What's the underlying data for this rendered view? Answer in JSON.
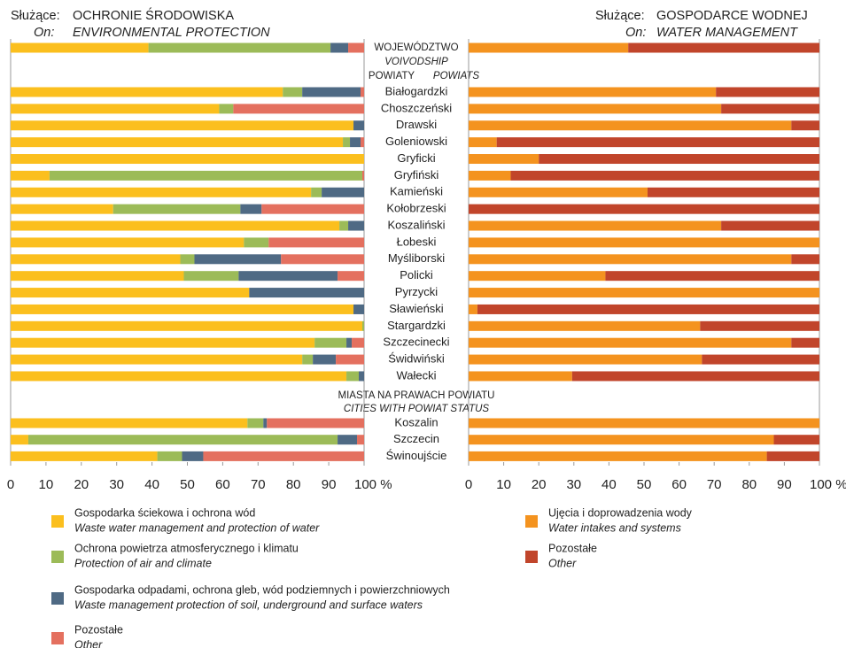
{
  "chart_data": {
    "type": "bar",
    "orientation": "horizontal",
    "stacked": true,
    "categories": [
      "WOJEWÓDZTWO",
      "Białogardzki",
      "Choszczeński",
      "Drawski",
      "Goleniowski",
      "Gryficki",
      "Gryfiński",
      "Kamieński",
      "Kołobrzeski",
      "Koszaliński",
      "Łobeski",
      "Myśliborski",
      "Policki",
      "Pyrzycki",
      "Sławieński",
      "Stargardzki",
      "Szczecinecki",
      "Świdwiński",
      "Wałecki",
      "Koszalin",
      "Szczecin",
      "Świnoujście"
    ],
    "annotations": [
      "VOIVODSHIP",
      "POWIATY",
      "POWIATS",
      "MIASTA NA PRAWACH POWIATU",
      "CITIES WITH POWIAT STATUS"
    ],
    "panels": [
      {
        "label_pl": "Służące:",
        "title": "OCHRONIE ŚRODOWISKA",
        "label_en": "On:",
        "subtitle": "ENVIRONMENTAL PROTECTION",
        "xlim": [
          0,
          100
        ],
        "xticks": [
          0,
          10,
          20,
          30,
          40,
          50,
          60,
          70,
          80,
          90,
          {
            "value": 100,
            "label": "100 %"
          }
        ],
        "series": [
          {
            "name": "Gospodarka ściekowa i ochrona wód",
            "name_en": "Waste water management and protection of water",
            "color": "#fbbf1e",
            "values": [
              39,
              77,
              59,
              97,
              94,
              100,
              11,
              85,
              29,
              93,
              66,
              48,
              49,
              67.5,
              97,
              99.5,
              86,
              82.5,
              95,
              67,
              5,
              41.5
            ]
          },
          {
            "name": "Ochrona powietrza atmosferycznego i klimatu",
            "name_en": "Protection of air and climate",
            "color": "#9cbb58",
            "values": [
              51.5,
              5.5,
              4,
              0,
              2,
              0,
              88.5,
              3,
              36,
              2.5,
              7,
              4,
              15.5,
              0,
              0,
              0.5,
              9,
              3,
              3.5,
              4.5,
              87.5,
              7
            ]
          },
          {
            "name": "Gospodarka odpadami, ochrona gleb, wód podziemnych i powierzchniowych",
            "name_en": "Waste management protection of soil, underground and surface waters",
            "color": "#4f6a84",
            "values": [
              5,
              16.5,
              0,
              3,
              3,
              0,
              0,
              12,
              6,
              4.5,
              0,
              24.5,
              28,
              32.5,
              3,
              0,
              1.5,
              6.5,
              1.5,
              1,
              5.5,
              6
            ]
          },
          {
            "name": "Pozostałe",
            "name_en": "Other",
            "color": "#e4705f",
            "values": [
              4.5,
              1,
              37,
              0,
              1,
              0,
              0.5,
              0,
              29,
              0,
              27,
              23.5,
              7.5,
              0,
              0,
              0,
              3.5,
              8,
              0,
              27.5,
              2,
              45.5
            ]
          }
        ]
      },
      {
        "label_pl": "Służące:",
        "title": "GOSPODARCE WODNEJ",
        "label_en": "On:",
        "subtitle": "WATER MANAGEMENT",
        "xlim": [
          0,
          100
        ],
        "xticks": [
          0,
          10,
          20,
          30,
          40,
          50,
          60,
          70,
          80,
          90,
          {
            "value": 100,
            "label": "100 %"
          }
        ],
        "series": [
          {
            "name": "Ujęcia i doprowadzenia wody",
            "name_en": "Water intakes and systems",
            "color": "#f4931f",
            "values": [
              45.5,
              70.5,
              72,
              92,
              8,
              20,
              12,
              51,
              0,
              72,
              100,
              92,
              39,
              100,
              2.5,
              66,
              92,
              66.5,
              29.5,
              100,
              87,
              85
            ]
          },
          {
            "name": "Pozostałe",
            "name_en": "Other",
            "color": "#c1452b",
            "values": [
              54.5,
              29.5,
              28,
              8,
              92,
              80,
              88,
              49,
              100,
              28,
              0,
              8,
              61,
              0,
              97.5,
              34,
              8,
              33.5,
              70.5,
              0,
              13,
              15
            ]
          }
        ]
      }
    ]
  }
}
